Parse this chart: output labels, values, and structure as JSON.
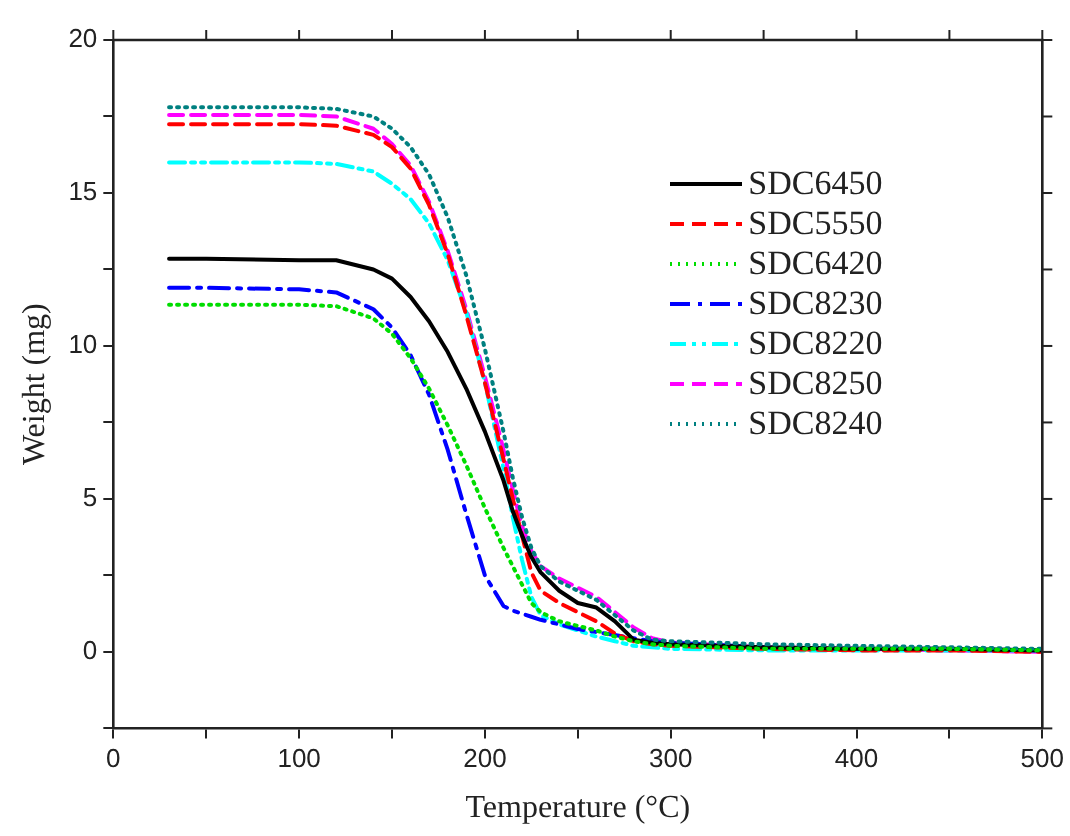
{
  "chart_data": {
    "type": "line",
    "xlabel": "Temperature (°C)",
    "ylabel": "Weight (mg)",
    "x": [
      30,
      50,
      100,
      120,
      140,
      150,
      160,
      170,
      180,
      190,
      200,
      210,
      215,
      220,
      225,
      230,
      240,
      250,
      260,
      270,
      280,
      290,
      300,
      350,
      400,
      450,
      500
    ],
    "xlim": [
      0,
      500
    ],
    "xticks": [
      0,
      {
        "value": 50,
        "label": null
      },
      100,
      {
        "value": 150,
        "label": null
      },
      200,
      {
        "value": 250,
        "label": null
      },
      300,
      {
        "value": 350,
        "label": null
      },
      400,
      {
        "value": 450,
        "label": null
      },
      500
    ],
    "ylim": [
      -2.5,
      20
    ],
    "yticks": [
      {
        "value": -2.5,
        "label": null
      },
      0,
      {
        "value": 2.5,
        "label": null
      },
      5,
      {
        "value": 7.5,
        "label": null
      },
      10,
      {
        "value": 12.5,
        "label": null
      },
      15,
      {
        "value": 17.5,
        "label": null
      },
      20
    ],
    "grid": false,
    "legend": "top right",
    "series": [
      {
        "name": "SDC6450",
        "color": "#000000",
        "line_style": "solid",
        "values": [
          12.85,
          12.85,
          12.8,
          12.8,
          12.5,
          12.2,
          11.6,
          10.8,
          9.8,
          8.6,
          7.2,
          5.6,
          4.6,
          3.8,
          3.1,
          2.6,
          2.0,
          1.6,
          1.45,
          1.0,
          0.4,
          0.3,
          0.25,
          0.15,
          0.1,
          0.1,
          0.05
        ]
      },
      {
        "name": "SDC5550",
        "color": "#ff0000",
        "line_style": "dashed",
        "values": [
          17.25,
          17.25,
          17.25,
          17.2,
          16.9,
          16.5,
          15.8,
          14.6,
          13.0,
          11.0,
          8.8,
          6.3,
          5.0,
          3.8,
          2.6,
          2.0,
          1.6,
          1.3,
          1.0,
          0.6,
          0.35,
          0.25,
          0.2,
          0.1,
          0.05,
          0.05,
          0.0
        ]
      },
      {
        "name": "SDC6420",
        "color": "#00dd00",
        "line_style": "dotted",
        "values": [
          11.35,
          11.35,
          11.35,
          11.3,
          10.9,
          10.4,
          9.6,
          8.6,
          7.4,
          6.1,
          4.7,
          3.4,
          2.8,
          2.2,
          1.6,
          1.3,
          1.0,
          0.85,
          0.7,
          0.5,
          0.35,
          0.25,
          0.2,
          0.1,
          0.1,
          0.1,
          0.05
        ]
      },
      {
        "name": "SDC8230",
        "color": "#0000ff",
        "line_style": "dashdot",
        "values": [
          11.9,
          11.9,
          11.85,
          11.75,
          11.2,
          10.6,
          9.7,
          8.4,
          6.6,
          4.5,
          2.5,
          1.5,
          1.35,
          1.25,
          1.15,
          1.05,
          0.9,
          0.75,
          0.65,
          0.55,
          0.45,
          0.35,
          0.3,
          0.15,
          0.1,
          0.1,
          0.05
        ]
      },
      {
        "name": "SDC8220",
        "color": "#00ffff",
        "line_style": "dashdotdot",
        "values": [
          16.0,
          16.0,
          16.0,
          15.95,
          15.7,
          15.3,
          14.8,
          14.0,
          12.8,
          11.1,
          8.8,
          6.0,
          4.4,
          3.0,
          1.8,
          1.2,
          0.9,
          0.7,
          0.5,
          0.35,
          0.2,
          0.15,
          0.1,
          0.05,
          0.05,
          0.05,
          0.05
        ]
      },
      {
        "name": "SDC8250",
        "color": "#ff00ff",
        "line_style": "dashed",
        "values": [
          17.55,
          17.55,
          17.55,
          17.5,
          17.1,
          16.6,
          15.9,
          14.7,
          13.1,
          11.2,
          9.0,
          6.6,
          5.3,
          4.1,
          3.3,
          2.8,
          2.4,
          2.1,
          1.8,
          1.3,
          0.8,
          0.45,
          0.3,
          0.15,
          0.1,
          0.05,
          0.0
        ]
      },
      {
        "name": "SDC8240",
        "color": "#008080",
        "line_style": "dotted",
        "values": [
          17.8,
          17.8,
          17.8,
          17.75,
          17.5,
          17.1,
          16.5,
          15.6,
          14.2,
          12.3,
          9.9,
          7.2,
          5.7,
          4.4,
          3.4,
          2.8,
          2.3,
          2.0,
          1.7,
          1.2,
          0.7,
          0.4,
          0.35,
          0.25,
          0.2,
          0.15,
          0.1
        ]
      }
    ]
  }
}
